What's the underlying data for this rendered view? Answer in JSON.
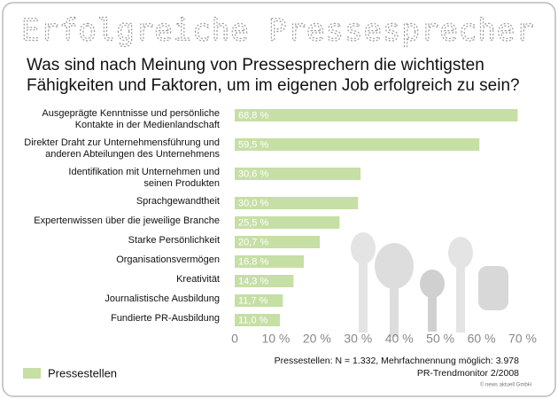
{
  "chart_data": {
    "type": "bar",
    "orientation": "horizontal",
    "title": "Erfolgreiche Pressesprecher",
    "subtitle": "Was sind nach Meinung von Pressesprechern die wichtigsten Fähigkeiten und Faktoren, um im eigenen Job erfolgreich zu sein?",
    "categories": [
      [
        "Ausgeprägte Kenntnisse und persönliche",
        "Kontakte in der Medienlandschaft"
      ],
      [
        "Direkter Draht zur Unternehmensführung und",
        "anderen Abteilungen des Unternehmens"
      ],
      [
        "Identifikation mit Unternehmen und",
        "seinen Produkten"
      ],
      [
        "Sprachgewandtheit"
      ],
      [
        "Expertenwissen über die jeweilige Branche"
      ],
      [
        "Starke Persönlichkeit"
      ],
      [
        "Organisationsvermögen"
      ],
      [
        "Kreativität"
      ],
      [
        "Journalistische Ausbildung"
      ],
      [
        "Fundierte PR-Ausbildung"
      ]
    ],
    "series": [
      {
        "name": "Pressestellen",
        "color": "#c6dfa5",
        "values": [
          68.8,
          59.5,
          30.6,
          30.0,
          25.5,
          20.7,
          16.8,
          14.3,
          11.7,
          11.0
        ],
        "value_labels": [
          "68,8 %",
          "59,5 %",
          "30,6 %",
          "30,0 %",
          "25,5 %",
          "20,7 %",
          "16,8 %",
          "14,3 %",
          "11,7 %",
          "11,0 %"
        ]
      }
    ],
    "xlim": [
      0,
      70
    ],
    "xticks": [
      0,
      {
        "value": 10,
        "label": "10 %"
      },
      {
        "value": 20,
        "label": "20 %"
      },
      {
        "value": 30,
        "label": "30 %"
      },
      {
        "value": 40,
        "label": "40 %"
      },
      {
        "value": 50,
        "label": "50 %"
      },
      {
        "value": 60,
        "label": "60 %"
      },
      {
        "value": 70,
        "label": "70 %"
      }
    ],
    "note": "Pressestellen: N = 1.332, Mehrfachnennung möglich: 3.978",
    "source": "PR-Trendmonitor 2/2008",
    "copyright": "© news aktuell GmbH"
  }
}
